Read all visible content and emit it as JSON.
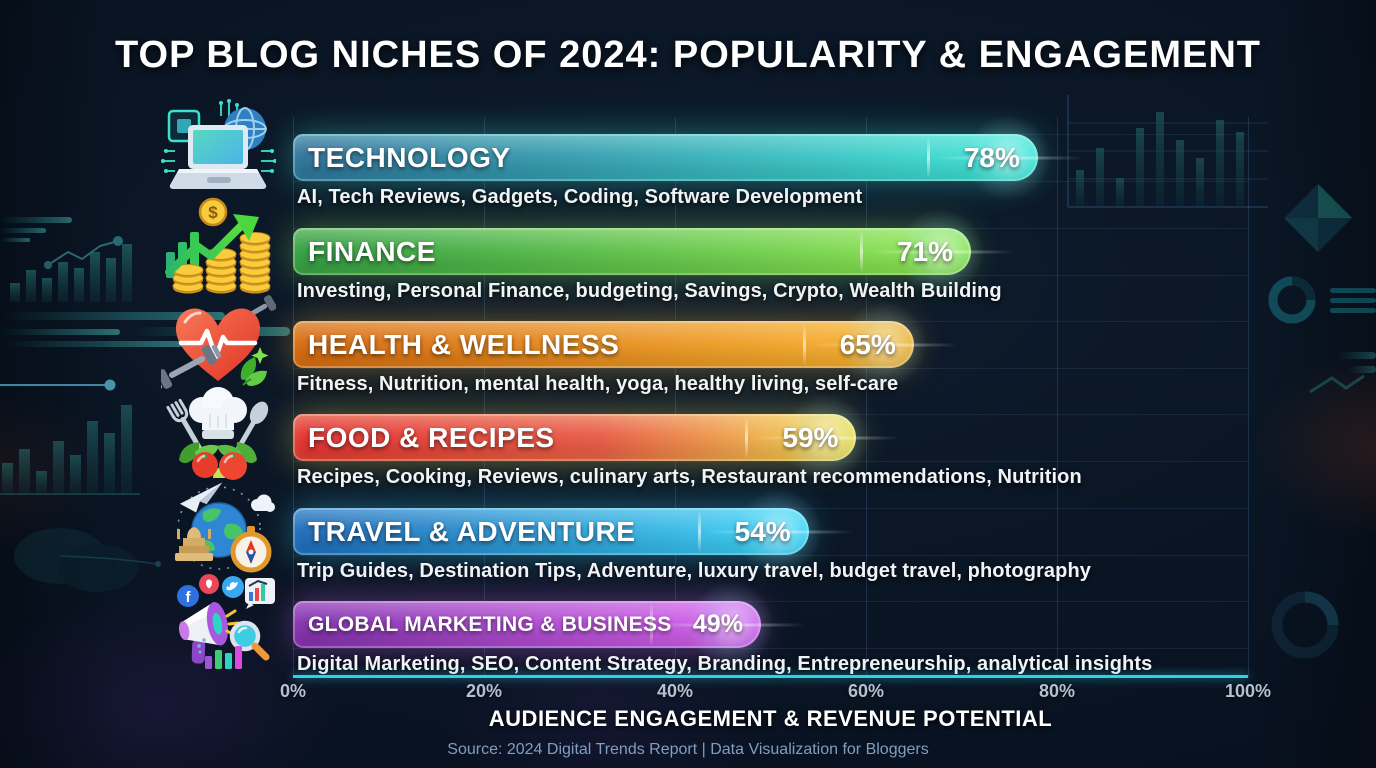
{
  "title": "TOP BLOG NICHES OF 2024: POPULARITY & ENGAGEMENT",
  "chart_data": {
    "type": "bar",
    "orientation": "horizontal",
    "title": "TOP BLOG NICHES OF 2024: POPULARITY & ENGAGEMENT",
    "xlabel": "AUDIENCE ENGAGEMENT & REVENUE POTENTIAL",
    "xlim": [
      0,
      100
    ],
    "x_ticks": [
      "0%",
      "20%",
      "40%",
      "60%",
      "80%",
      "100%"
    ],
    "grid": true,
    "categories": [
      "TECHNOLOGY",
      "FINANCE",
      "HEALTH & WELLNESS",
      "FOOD & RECIPES",
      "TRAVEL & ADVENTURE",
      "GLOBAL MARKETING & BUSINESS"
    ],
    "values": [
      78,
      71,
      65,
      59,
      54,
      49
    ],
    "rows": [
      {
        "label": "TECHNOLOGY",
        "value": 78,
        "pct_label": "78%",
        "description": "AI, Tech Reviews, Gadgets, Coding, Software Development",
        "icon": "technology-icon",
        "color_start": "#2b6e96",
        "color_end": "#3de8d6"
      },
      {
        "label": "FINANCE",
        "value": 71,
        "pct_label": "71%",
        "description": "Investing, Personal Finance, budgeting, Savings, Crypto, Wealth Building",
        "icon": "finance-icon",
        "color_start": "#2e9c40",
        "color_end": "#8fe850"
      },
      {
        "label": "HEALTH & WELLNESS",
        "value": 65,
        "pct_label": "65%",
        "description": "Fitness, Nutrition, mental health, yoga, healthy living, self-care",
        "icon": "health-icon",
        "color_start": "#d5660b",
        "color_end": "#f9b42e"
      },
      {
        "label": "FOOD & RECIPES",
        "value": 59,
        "pct_label": "59%",
        "description": "Recipes, Cooking, Reviews, culinary arts, Restaurant recommendations, Nutrition",
        "icon": "food-icon",
        "color_start": "#e22c2c",
        "color_mid": "#e85a42",
        "color_end": "#f4e24e"
      },
      {
        "label": "TRAVEL & ADVENTURE",
        "value": 54,
        "pct_label": "54%",
        "description": "Trip Guides, Destination Tips, Adventure, luxury travel, budget travel, photography",
        "icon": "travel-icon",
        "color_start": "#1b66b8",
        "color_end": "#3cd6f8"
      },
      {
        "label": "GLOBAL MARKETING & BUSINESS",
        "value": 49,
        "pct_label": "49%",
        "description": "Digital Marketing, SEO, Content Strategy, Branding, Entrepreneurship, analytical insights",
        "icon": "marketing-icon",
        "color_start": "#7e2caa",
        "color_end": "#d862f0"
      }
    ]
  },
  "footer": {
    "axis_label": "AUDIENCE ENGAGEMENT & REVENUE POTENTIAL",
    "source": "Source: 2024 Digital Trends Report | Data Visualization for Bloggers"
  },
  "theme": {
    "background": "#0b1726",
    "axis_line_color": "#2ed2e6",
    "tick_color": "#b4c1d1",
    "source_color": "#7f9ec2"
  }
}
